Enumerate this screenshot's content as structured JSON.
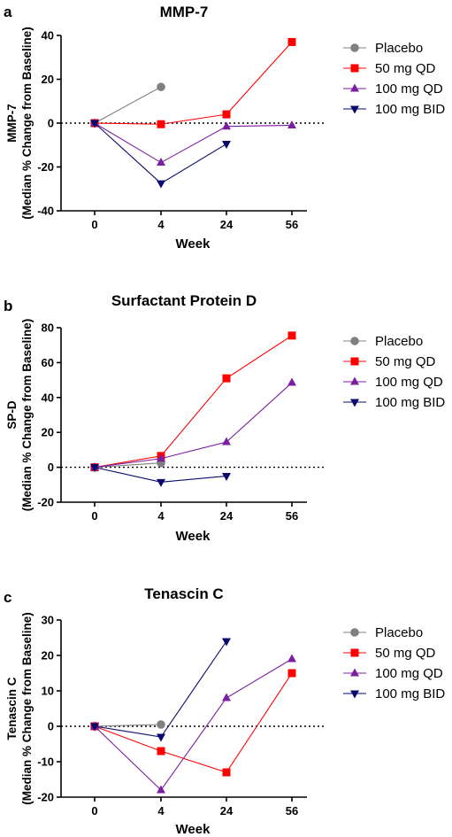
{
  "chart_data": [
    {
      "type": "line",
      "panel": "a",
      "title": "MMP-7",
      "ylabel_line1": "MMP-7",
      "ylabel_line2": "(Median % Change from Baseline)",
      "xlabel": "Week",
      "categories": [
        "0",
        "4",
        "24",
        "56"
      ],
      "ylim": [
        -40,
        40
      ],
      "yticks": [
        40,
        20,
        0,
        -20,
        -40
      ],
      "reference_line": 0,
      "series": [
        {
          "name": "Placebo",
          "color": "#808080",
          "marker": "circle",
          "values": [
            0,
            16.5,
            null,
            null
          ]
        },
        {
          "name": "50 mg QD",
          "color": "#ff0000",
          "marker": "square",
          "values": [
            0,
            -0.5,
            4,
            37
          ]
        },
        {
          "name": "100 mg QD",
          "color": "#7b1fa2",
          "marker": "triangle-up",
          "values": [
            0,
            -18,
            -1.5,
            -1
          ]
        },
        {
          "name": "100 mg BID",
          "color": "#0a0a6e",
          "marker": "triangle-down",
          "values": [
            0,
            -27.5,
            -9.5,
            null
          ]
        }
      ]
    },
    {
      "type": "line",
      "panel": "b",
      "title": "Surfactant Protein D",
      "ylabel_line1": "SP-D",
      "ylabel_line2": "(Median % Change from Baseline)",
      "xlabel": "Week",
      "categories": [
        "0",
        "4",
        "24",
        "56"
      ],
      "ylim": [
        -20,
        80
      ],
      "yticks": [
        80,
        60,
        40,
        20,
        0,
        -20
      ],
      "reference_line": 0,
      "series": [
        {
          "name": "Placebo",
          "color": "#808080",
          "marker": "circle",
          "values": [
            0,
            2.5,
            null,
            null
          ]
        },
        {
          "name": "50 mg QD",
          "color": "#ff0000",
          "marker": "square",
          "values": [
            0,
            6.5,
            51,
            75.5
          ]
        },
        {
          "name": "100 mg QD",
          "color": "#7b1fa2",
          "marker": "triangle-up",
          "values": [
            0,
            5,
            14.5,
            48.5
          ]
        },
        {
          "name": "100 mg BID",
          "color": "#0a0a6e",
          "marker": "triangle-down",
          "values": [
            0,
            -8.5,
            -5,
            null
          ]
        }
      ]
    },
    {
      "type": "line",
      "panel": "c",
      "title": "Tenascin C",
      "ylabel_line1": "Tenascin C",
      "ylabel_line2": "(Median % Change from Baseline)",
      "xlabel": "Week",
      "categories": [
        "0",
        "4",
        "24",
        "56"
      ],
      "ylim": [
        -20,
        30
      ],
      "yticks": [
        30,
        20,
        10,
        0,
        -10,
        -20
      ],
      "reference_line": 0,
      "series": [
        {
          "name": "Placebo",
          "color": "#808080",
          "marker": "circle",
          "values": [
            0,
            0.5,
            null,
            null
          ]
        },
        {
          "name": "50 mg QD",
          "color": "#ff0000",
          "marker": "square",
          "values": [
            0,
            -7,
            -13,
            15
          ]
        },
        {
          "name": "100 mg QD",
          "color": "#7b1fa2",
          "marker": "triangle-up",
          "values": [
            0,
            -18,
            8,
            19
          ]
        },
        {
          "name": "100 mg BID",
          "color": "#0a0a6e",
          "marker": "triangle-down",
          "values": [
            0,
            -3,
            24,
            null
          ]
        }
      ]
    }
  ]
}
